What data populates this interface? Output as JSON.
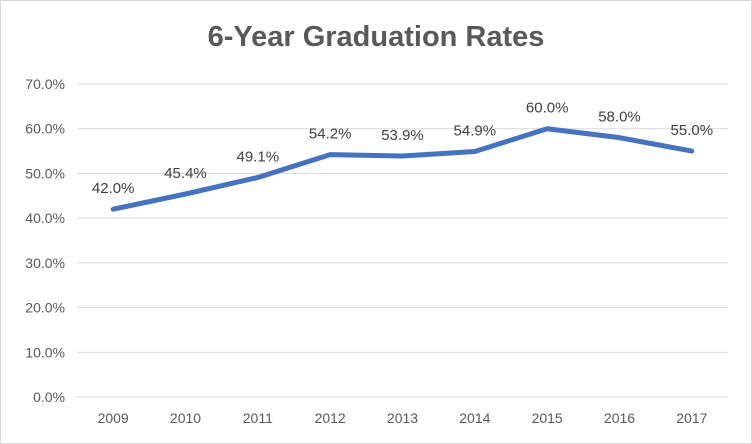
{
  "chart_data": {
    "type": "line",
    "title": "6-Year Graduation Rates",
    "categories": [
      "2009",
      "2010",
      "2011",
      "2012",
      "2013",
      "2014",
      "2015",
      "2016",
      "2017"
    ],
    "series": [
      {
        "values": [
          42.0,
          45.4,
          49.1,
          54.2,
          53.9,
          54.9,
          60.0,
          58.0,
          55.0
        ],
        "data_labels": [
          "42.0%",
          "45.4%",
          "49.1%",
          "54.2%",
          "53.9%",
          "54.9%",
          "60.0%",
          "58.0%",
          "55.0%"
        ],
        "color": "#4472c4"
      }
    ],
    "y_ticks": [
      "0.0%",
      "10.0%",
      "20.0%",
      "30.0%",
      "40.0%",
      "50.0%",
      "60.0%",
      "70.0%"
    ],
    "ylim": [
      0,
      70
    ],
    "grid": true,
    "legend": "none"
  }
}
